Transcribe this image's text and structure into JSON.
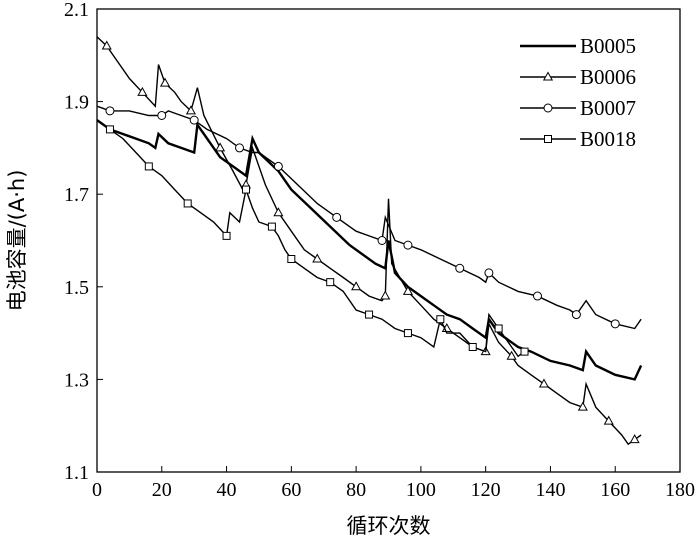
{
  "chart_data": {
    "type": "line",
    "title": "",
    "xlabel": "循环次数",
    "ylabel": "电池容量/(A·h)",
    "xlim": [
      0,
      180
    ],
    "ylim": [
      1.1,
      2.1
    ],
    "xticks": [
      "0",
      "20",
      "40",
      "60",
      "80",
      "100",
      "120",
      "140",
      "160",
      "180"
    ],
    "yticks": [
      "1.1",
      "1.3",
      "1.5",
      "1.7",
      "1.9",
      "2.1"
    ],
    "grid": false,
    "legend_position": "top-right",
    "series": [
      {
        "name": "B0005",
        "marker": "none",
        "points": [
          [
            0,
            1.86
          ],
          [
            4,
            1.84
          ],
          [
            8,
            1.83
          ],
          [
            12,
            1.82
          ],
          [
            16,
            1.81
          ],
          [
            18,
            1.8
          ],
          [
            19,
            1.83
          ],
          [
            22,
            1.81
          ],
          [
            26,
            1.8
          ],
          [
            30,
            1.79
          ],
          [
            31,
            1.85
          ],
          [
            33,
            1.83
          ],
          [
            38,
            1.78
          ],
          [
            42,
            1.76
          ],
          [
            46,
            1.74
          ],
          [
            48,
            1.82
          ],
          [
            50,
            1.79
          ],
          [
            56,
            1.75
          ],
          [
            60,
            1.71
          ],
          [
            66,
            1.67
          ],
          [
            72,
            1.63
          ],
          [
            78,
            1.59
          ],
          [
            86,
            1.55
          ],
          [
            89,
            1.54
          ],
          [
            90,
            1.6
          ],
          [
            92,
            1.53
          ],
          [
            96,
            1.5
          ],
          [
            100,
            1.48
          ],
          [
            104,
            1.46
          ],
          [
            108,
            1.44
          ],
          [
            112,
            1.43
          ],
          [
            116,
            1.41
          ],
          [
            120,
            1.39
          ],
          [
            121,
            1.43
          ],
          [
            124,
            1.4
          ],
          [
            130,
            1.37
          ],
          [
            134,
            1.36
          ],
          [
            140,
            1.34
          ],
          [
            146,
            1.33
          ],
          [
            150,
            1.32
          ],
          [
            151,
            1.36
          ],
          [
            154,
            1.33
          ],
          [
            160,
            1.31
          ],
          [
            166,
            1.3
          ],
          [
            168,
            1.33
          ]
        ]
      },
      {
        "name": "B0006",
        "marker": "triangle",
        "points": [
          [
            0,
            2.04
          ],
          [
            3,
            2.02
          ],
          [
            6,
            1.99
          ],
          [
            10,
            1.95
          ],
          [
            14,
            1.92
          ],
          [
            18,
            1.89
          ],
          [
            19,
            1.98
          ],
          [
            21,
            1.94
          ],
          [
            24,
            1.92
          ],
          [
            26,
            1.9
          ],
          [
            29,
            1.88
          ],
          [
            31,
            1.93
          ],
          [
            33,
            1.87
          ],
          [
            38,
            1.8
          ],
          [
            42,
            1.75
          ],
          [
            45,
            1.71
          ],
          [
            46,
            1.72
          ],
          [
            48,
            1.8
          ],
          [
            52,
            1.72
          ],
          [
            56,
            1.66
          ],
          [
            60,
            1.62
          ],
          [
            64,
            1.58
          ],
          [
            68,
            1.56
          ],
          [
            72,
            1.54
          ],
          [
            76,
            1.52
          ],
          [
            80,
            1.5
          ],
          [
            84,
            1.48
          ],
          [
            88,
            1.47
          ],
          [
            89,
            1.48
          ],
          [
            90,
            1.69
          ],
          [
            91,
            1.55
          ],
          [
            96,
            1.49
          ],
          [
            100,
            1.46
          ],
          [
            104,
            1.43
          ],
          [
            108,
            1.41
          ],
          [
            112,
            1.39
          ],
          [
            116,
            1.37
          ],
          [
            120,
            1.36
          ],
          [
            121,
            1.42
          ],
          [
            124,
            1.38
          ],
          [
            128,
            1.35
          ],
          [
            130,
            1.33
          ],
          [
            134,
            1.31
          ],
          [
            138,
            1.29
          ],
          [
            142,
            1.27
          ],
          [
            146,
            1.25
          ],
          [
            150,
            1.24
          ],
          [
            151,
            1.29
          ],
          [
            154,
            1.24
          ],
          [
            158,
            1.21
          ],
          [
            162,
            1.18
          ],
          [
            164,
            1.16
          ],
          [
            166,
            1.17
          ],
          [
            168,
            1.18
          ]
        ]
      },
      {
        "name": "B0007",
        "marker": "circle",
        "points": [
          [
            0,
            1.89
          ],
          [
            4,
            1.88
          ],
          [
            10,
            1.88
          ],
          [
            16,
            1.87
          ],
          [
            20,
            1.87
          ],
          [
            22,
            1.88
          ],
          [
            26,
            1.87
          ],
          [
            30,
            1.86
          ],
          [
            34,
            1.84
          ],
          [
            40,
            1.82
          ],
          [
            44,
            1.8
          ],
          [
            48,
            1.79
          ],
          [
            50,
            1.79
          ],
          [
            56,
            1.76
          ],
          [
            62,
            1.72
          ],
          [
            68,
            1.68
          ],
          [
            74,
            1.65
          ],
          [
            80,
            1.62
          ],
          [
            84,
            1.61
          ],
          [
            88,
            1.6
          ],
          [
            89,
            1.65
          ],
          [
            92,
            1.6
          ],
          [
            96,
            1.59
          ],
          [
            100,
            1.58
          ],
          [
            106,
            1.56
          ],
          [
            112,
            1.54
          ],
          [
            118,
            1.52
          ],
          [
            120,
            1.51
          ],
          [
            121,
            1.53
          ],
          [
            124,
            1.51
          ],
          [
            130,
            1.49
          ],
          [
            136,
            1.48
          ],
          [
            142,
            1.46
          ],
          [
            146,
            1.45
          ],
          [
            148,
            1.44
          ],
          [
            151,
            1.47
          ],
          [
            154,
            1.44
          ],
          [
            160,
            1.42
          ],
          [
            166,
            1.41
          ],
          [
            168,
            1.43
          ]
        ]
      },
      {
        "name": "B0018",
        "marker": "square",
        "points": [
          [
            0,
            1.86
          ],
          [
            4,
            1.84
          ],
          [
            8,
            1.82
          ],
          [
            12,
            1.79
          ],
          [
            16,
            1.76
          ],
          [
            20,
            1.74
          ],
          [
            24,
            1.71
          ],
          [
            28,
            1.68
          ],
          [
            32,
            1.66
          ],
          [
            36,
            1.64
          ],
          [
            40,
            1.61
          ],
          [
            41,
            1.66
          ],
          [
            44,
            1.64
          ],
          [
            46,
            1.71
          ],
          [
            48,
            1.67
          ],
          [
            50,
            1.64
          ],
          [
            54,
            1.63
          ],
          [
            56,
            1.61
          ],
          [
            58,
            1.58
          ],
          [
            60,
            1.56
          ],
          [
            64,
            1.54
          ],
          [
            68,
            1.52
          ],
          [
            72,
            1.51
          ],
          [
            76,
            1.49
          ],
          [
            80,
            1.45
          ],
          [
            84,
            1.44
          ],
          [
            88,
            1.43
          ],
          [
            92,
            1.41
          ],
          [
            96,
            1.4
          ],
          [
            100,
            1.39
          ],
          [
            104,
            1.37
          ],
          [
            106,
            1.43
          ],
          [
            108,
            1.4
          ],
          [
            112,
            1.4
          ],
          [
            116,
            1.37
          ],
          [
            120,
            1.36
          ],
          [
            121,
            1.44
          ],
          [
            124,
            1.41
          ],
          [
            128,
            1.37
          ],
          [
            130,
            1.35
          ],
          [
            132,
            1.36
          ]
        ]
      }
    ]
  }
}
